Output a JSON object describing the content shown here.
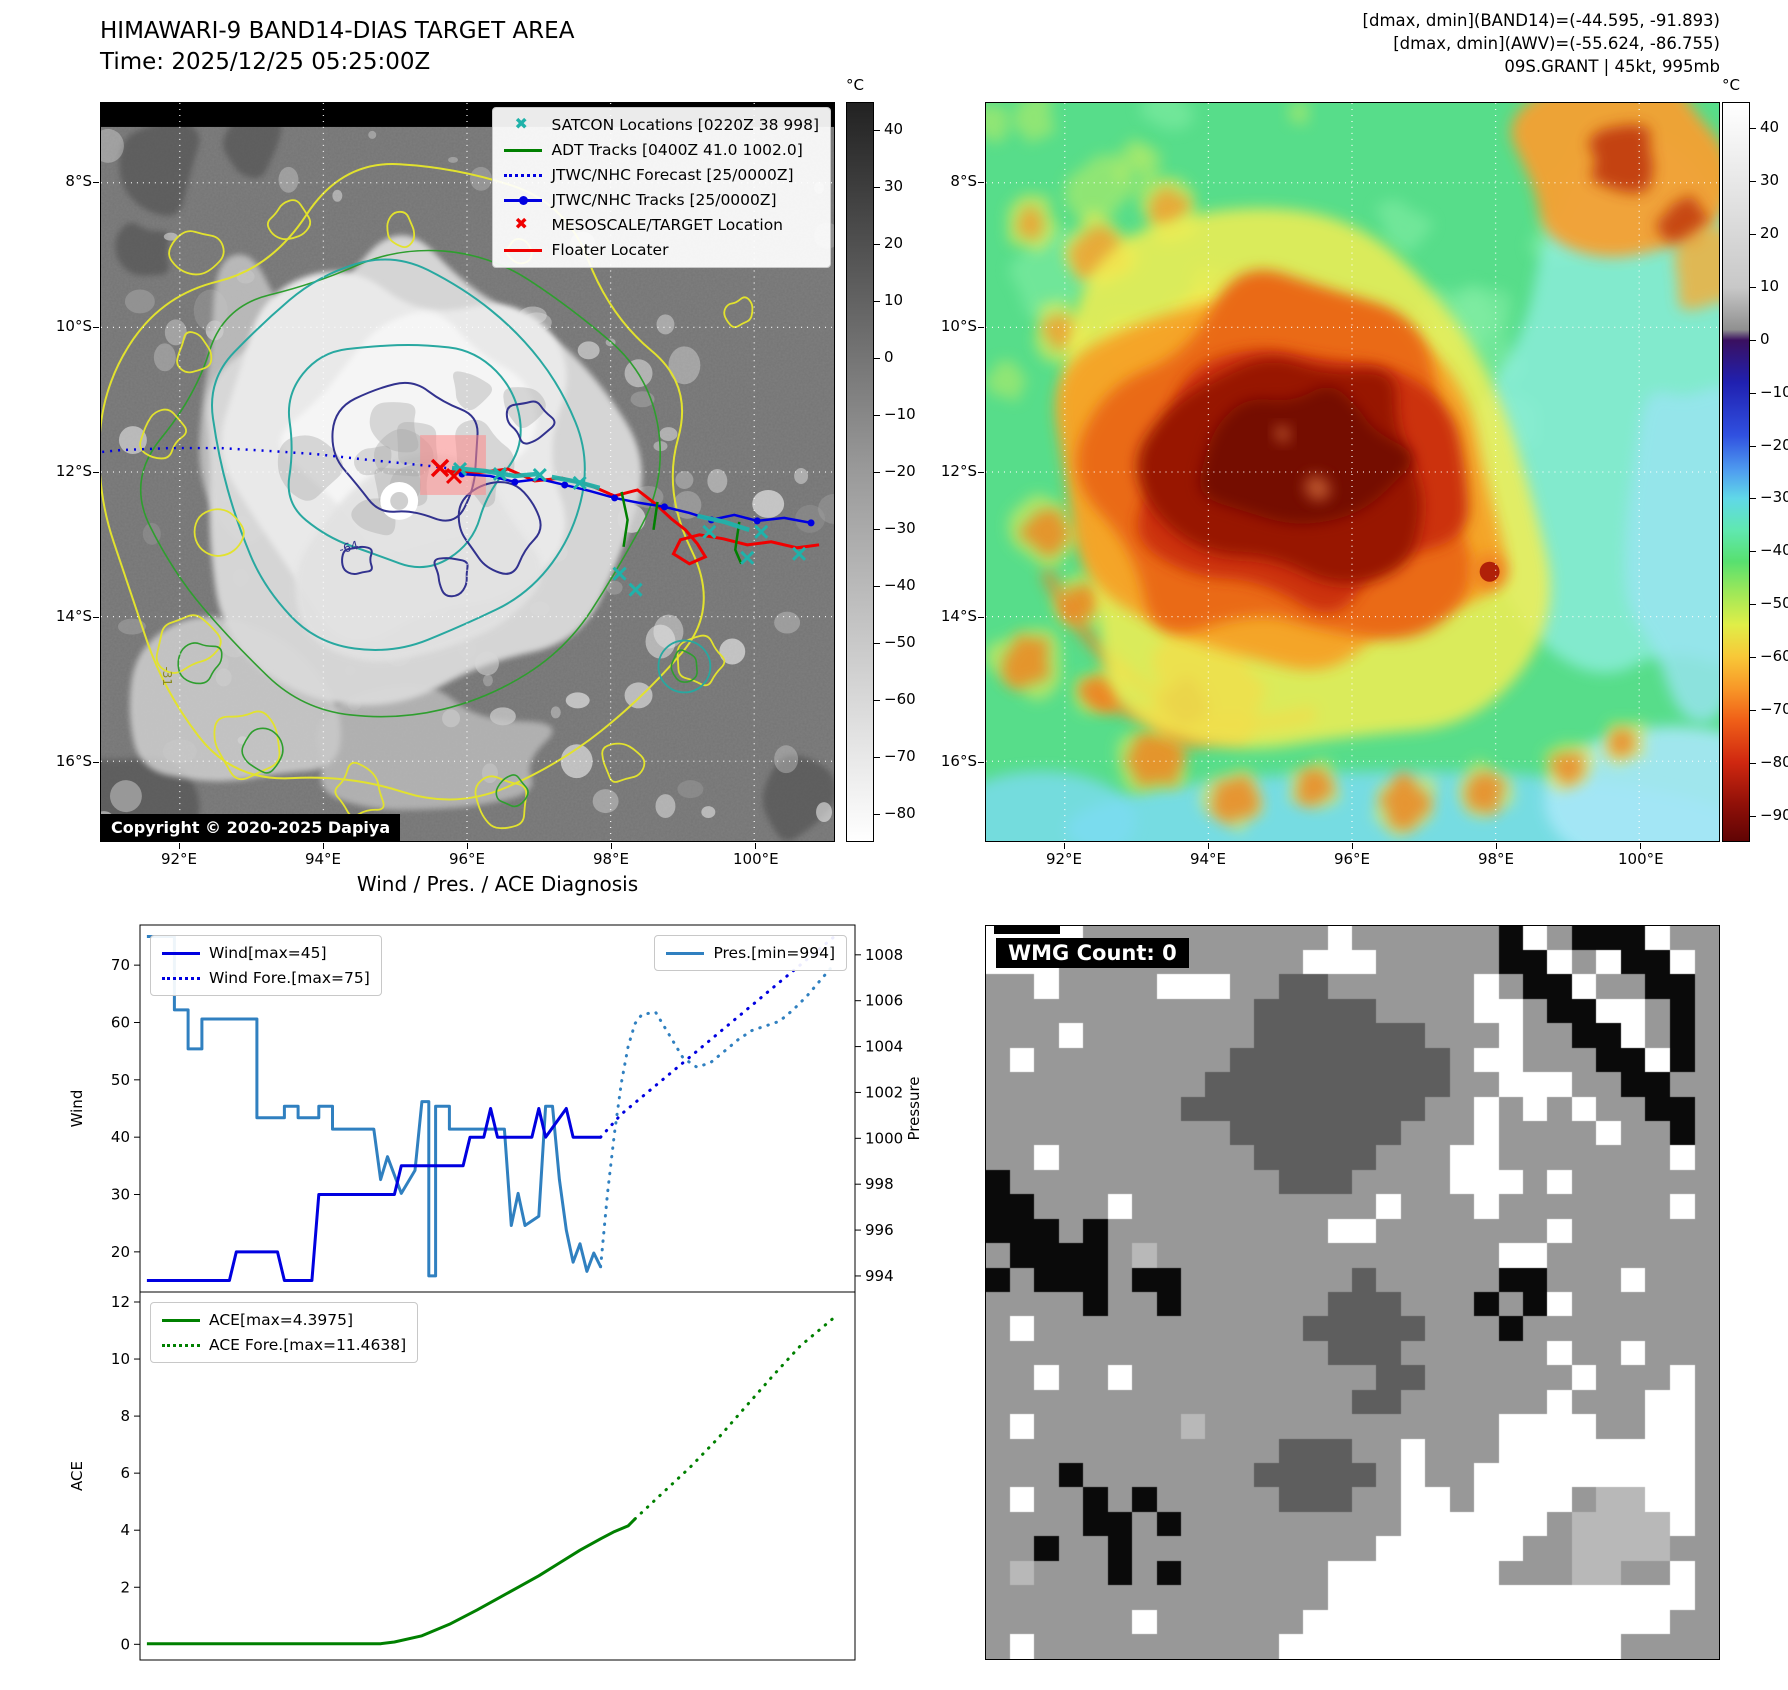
{
  "header_right": {
    "line1": "[dmax, dmin](BAND14)=(-44.595, -91.893)",
    "line2": "[dmax, dmin](AWV)=(-55.624, -86.755)",
    "line3": "09S.GRANT | 45kt, 995mb"
  },
  "band14": {
    "title": "HIMAWARI-9 BAND14-DIAS TARGET AREA",
    "time_label": "Time: 2025/12/25 05:25:00Z",
    "copyright": "Copyright © 2020-2025 Dapiya",
    "x_tick_labels": [
      "92°E",
      "94°E",
      "96°E",
      "98°E",
      "100°E"
    ],
    "y_tick_labels": [
      "8°S",
      "10°S",
      "12°S",
      "14°S",
      "16°S"
    ],
    "contour_labels": [
      "-64",
      "-31"
    ],
    "colorbar": {
      "unit": "°C",
      "vmax": 45,
      "vmin": -85,
      "ticks": [
        40,
        30,
        20,
        10,
        0,
        -10,
        -20,
        -30,
        -40,
        -50,
        -60,
        -70,
        -80
      ],
      "stops": [
        {
          "t": 45,
          "c": "#222222"
        },
        {
          "t": -20,
          "c": "#9a9a9a"
        },
        {
          "t": -85,
          "c": "#ffffff"
        }
      ]
    },
    "legend": [
      {
        "label": "SATCON Locations [0220Z 38 998]",
        "marker": "x",
        "color": "#20b2aa"
      },
      {
        "label": "ADT Tracks [0400Z 41.0 1002.0]",
        "marker": "line",
        "color": "#008000"
      },
      {
        "label": "JTWC/NHC Forecast [25/0000Z]",
        "marker": "dotted",
        "color": "#0000e0"
      },
      {
        "label": "JTWC/NHC Tracks [25/0000Z]",
        "marker": "line-dot",
        "color": "#0000e0"
      },
      {
        "label": "MESOSCALE/TARGET Location",
        "marker": "x",
        "color": "#f00000"
      },
      {
        "label": "Floater Locater",
        "marker": "line",
        "color": "#f00000"
      }
    ]
  },
  "awv": {
    "x_tick_labels": [
      "92°E",
      "94°E",
      "96°E",
      "98°E",
      "100°E"
    ],
    "y_tick_labels": [
      "8°S",
      "10°S",
      "12°S",
      "14°S",
      "16°S"
    ],
    "colorbar": {
      "unit": "°C",
      "vmax": 45,
      "vmin": -95,
      "ticks": [
        40,
        30,
        20,
        10,
        0,
        -10,
        -20,
        -30,
        -40,
        -50,
        -60,
        -70,
        -80,
        -90
      ],
      "stops": [
        {
          "t": 45,
          "c": "#ffffff"
        },
        {
          "t": 10,
          "c": "#c8c8c8"
        },
        {
          "t": 2,
          "c": "#909090"
        },
        {
          "t": 0,
          "c": "#3a1060"
        },
        {
          "t": -8,
          "c": "#2020b0"
        },
        {
          "t": -18,
          "c": "#3050e0"
        },
        {
          "t": -25,
          "c": "#50a0f0"
        },
        {
          "t": -30,
          "c": "#60d8e8"
        },
        {
          "t": -36,
          "c": "#60e8b0"
        },
        {
          "t": -42,
          "c": "#58e070"
        },
        {
          "t": -48,
          "c": "#a0e858"
        },
        {
          "t": -54,
          "c": "#e0ee48"
        },
        {
          "t": -60,
          "c": "#f8c838"
        },
        {
          "t": -66,
          "c": "#f89828"
        },
        {
          "t": -72,
          "c": "#f06018"
        },
        {
          "t": -80,
          "c": "#d02810"
        },
        {
          "t": -88,
          "c": "#901008"
        },
        {
          "t": -95,
          "c": "#600404"
        }
      ]
    }
  },
  "wmg": {
    "label": "WMG Count: 0",
    "palette": {
      ".": "#989898",
      "w": "#ffffff",
      "d": "#5e5e5e",
      "b": "#0a0a0a",
      "l": "#b8b8b8"
    },
    "rows": [
      "wwww..........w......bw.bbbw.",
      "www..........www.....bbw.wbbw",
      "..w....www..dd......w.bbw..bb",
      "...........ddddd....ww.bbww.b",
      "...w......_ddddddd...w..bbw.b",
      ".w........ddddddddd.ww...bbwb",
      ".........dddddddddd..www..bb.",
      "........dddddddddd..w.w.w..bb",
      "..........ddddddd...w....w..b",
      "..w........ddddd...ww.......w",
      "b...........ddd....www.w.....",
      "bb...w..........w...w.......w",
      "bbb.b.........ww.......w.....",
      ".bbbb.l..............ww......",
      "b.bbb.bb.......d.....bb...w..",
      "....b..b......ddd...b.bw.....",
      ".w...........ddddd...b.......",
      "..............ddd......w..w..",
      "..w..w..........dd......w...w",
      "...............dd......w...ww",
      ".w......l............wwww..ww",
      "............ddd..w...wwwwwwww",
      "...b.......ddddd.w..wwwwwwwww",
      ".w..b.b.....ddd..ww.wwww.llww",
      "....bb.b.........wwwwww.llllw",
      "..b..b..........wwwwww..llll.",
      ".l...b.b......wwwwwww...ll..w",
      "..............wwwwwwwwwwwwwww",
      "......w......wwwwwwwwwwwwwww.",
      ".w..........wwwwwwwwwwwwww..."
    ]
  },
  "chart_data": [
    {
      "id": "wind_pressure",
      "type": "line",
      "title": "Wind / Pres. / ACE Diagnosis",
      "ylabel_left": "Wind",
      "ylabel_right": "Pressure",
      "ylim_left": [
        13,
        77
      ],
      "ylim_right": [
        993.3,
        1009.3
      ],
      "yticks_left": [
        20,
        30,
        40,
        50,
        60,
        70
      ],
      "yticks_right": [
        994,
        996,
        998,
        1000,
        1002,
        1004,
        1006,
        1008
      ],
      "xlim": [
        -1,
        103
      ],
      "grid": false,
      "legend_topleft": [
        "Wind[max=45]",
        "Wind Fore.[max=75]"
      ],
      "legend_topright": [
        "Pres.[min=994]"
      ],
      "series": [
        {
          "name": "Pres.[min=994]",
          "axis": "right",
          "style": "solid",
          "color": "#3080c0",
          "lw": 3,
          "points": [
            [
              0,
              1008.8
            ],
            [
              4,
              1008.8
            ],
            [
              4,
              1005.6
            ],
            [
              6,
              1005.6
            ],
            [
              6,
              1003.9
            ],
            [
              8,
              1003.9
            ],
            [
              8,
              1005.2
            ],
            [
              16,
              1005.2
            ],
            [
              16,
              1000.9
            ],
            [
              20,
              1000.9
            ],
            [
              20,
              1001.4
            ],
            [
              22,
              1001.4
            ],
            [
              22,
              1000.9
            ],
            [
              25,
              1000.9
            ],
            [
              25,
              1001.4
            ],
            [
              27,
              1001.4
            ],
            [
              27,
              1000.4
            ],
            [
              33,
              1000.4
            ],
            [
              34,
              998.2
            ],
            [
              35,
              999.2
            ],
            [
              37,
              997.6
            ],
            [
              39,
              998.6
            ],
            [
              40,
              1001.6
            ],
            [
              41,
              1001.6
            ],
            [
              41,
              994.0
            ],
            [
              42,
              994.0
            ],
            [
              42,
              1001.4
            ],
            [
              44,
              1001.4
            ],
            [
              44,
              1000.4
            ],
            [
              52,
              1000.4
            ],
            [
              53,
              996.2
            ],
            [
              54,
              997.6
            ],
            [
              55,
              996.2
            ],
            [
              57,
              996.6
            ],
            [
              58,
              1001.4
            ],
            [
              59,
              1001.4
            ],
            [
              60,
              998.2
            ],
            [
              61,
              996.0
            ],
            [
              62,
              994.6
            ],
            [
              63,
              995.4
            ],
            [
              64,
              994.2
            ],
            [
              65,
              995.0
            ],
            [
              66,
              994.4
            ]
          ]
        },
        {
          "name": "",
          "id": "pres-forecast",
          "axis": "right",
          "style": "dotted",
          "color": "#3080c0",
          "lw": 3,
          "points": [
            [
              66,
              994.4
            ],
            [
              67,
              997.6
            ],
            [
              68,
              1000.2
            ],
            [
              69,
              1002.4
            ],
            [
              70,
              1004.0
            ],
            [
              71,
              1005.0
            ],
            [
              72,
              1005.4
            ],
            [
              74,
              1005.5
            ],
            [
              76,
              1004.5
            ],
            [
              78,
              1003.5
            ],
            [
              80,
              1003.1
            ],
            [
              82,
              1003.3
            ],
            [
              84,
              1003.8
            ],
            [
              86,
              1004.3
            ],
            [
              88,
              1004.7
            ],
            [
              90,
              1004.9
            ],
            [
              92,
              1005.1
            ],
            [
              94,
              1005.6
            ],
            [
              96,
              1006.2
            ],
            [
              98,
              1006.9
            ],
            [
              100,
              1007.6
            ]
          ]
        },
        {
          "name": "Wind[max=45]",
          "axis": "left",
          "style": "solid",
          "color": "#0000e0",
          "lw": 3,
          "points": [
            [
              0,
              15
            ],
            [
              12,
              15
            ],
            [
              13,
              20
            ],
            [
              19,
              20
            ],
            [
              20,
              15
            ],
            [
              24,
              15
            ],
            [
              25,
              30
            ],
            [
              36,
              30
            ],
            [
              37,
              35
            ],
            [
              46,
              35
            ],
            [
              47,
              40
            ],
            [
              49,
              40
            ],
            [
              50,
              45
            ],
            [
              51,
              40
            ],
            [
              56,
              40
            ],
            [
              57,
              45
            ],
            [
              58,
              40
            ],
            [
              61,
              45
            ],
            [
              62,
              40
            ],
            [
              66,
              40
            ]
          ]
        },
        {
          "name": "Wind Fore.[max=75]",
          "axis": "left",
          "style": "dotted",
          "color": "#0000e0",
          "lw": 3,
          "points": [
            [
              66,
              40
            ],
            [
              69,
              44
            ],
            [
              72,
              47
            ],
            [
              76,
              51
            ],
            [
              80,
              55
            ],
            [
              84,
              59
            ],
            [
              88,
              63
            ],
            [
              92,
              67
            ],
            [
              96,
              71
            ],
            [
              100,
              75
            ]
          ]
        }
      ]
    },
    {
      "id": "ace",
      "type": "line",
      "ylabel_left": "ACE",
      "ylim_left": [
        -0.55,
        12.35
      ],
      "yticks_left": [
        0,
        2,
        4,
        6,
        8,
        10,
        12
      ],
      "xlim": [
        -1,
        103
      ],
      "grid": false,
      "legend_topleft": [
        "ACE[max=4.3975]",
        "ACE Fore.[max=11.4638]"
      ],
      "series": [
        {
          "name": "ACE[max=4.3975]",
          "axis": "left",
          "style": "solid",
          "color": "#008000",
          "lw": 3,
          "points": [
            [
              0,
              0.02
            ],
            [
              34,
              0.02
            ],
            [
              36,
              0.08
            ],
            [
              40,
              0.3
            ],
            [
              44,
              0.7
            ],
            [
              48,
              1.2
            ],
            [
              51,
              1.6
            ],
            [
              54,
              2.0
            ],
            [
              57,
              2.4
            ],
            [
              60,
              2.85
            ],
            [
              63,
              3.3
            ],
            [
              66,
              3.7
            ],
            [
              68,
              3.95
            ],
            [
              70,
              4.15
            ],
            [
              71,
              4.3975
            ]
          ]
        },
        {
          "name": "ACE Fore.[max=11.4638]",
          "axis": "left",
          "style": "dotted",
          "color": "#008000",
          "lw": 3,
          "points": [
            [
              71,
              4.3975
            ],
            [
              75,
              5.3
            ],
            [
              79,
              6.2
            ],
            [
              83,
              7.2
            ],
            [
              87,
              8.3
            ],
            [
              91,
              9.4
            ],
            [
              95,
              10.45
            ],
            [
              100,
              11.4638
            ]
          ]
        }
      ]
    }
  ]
}
